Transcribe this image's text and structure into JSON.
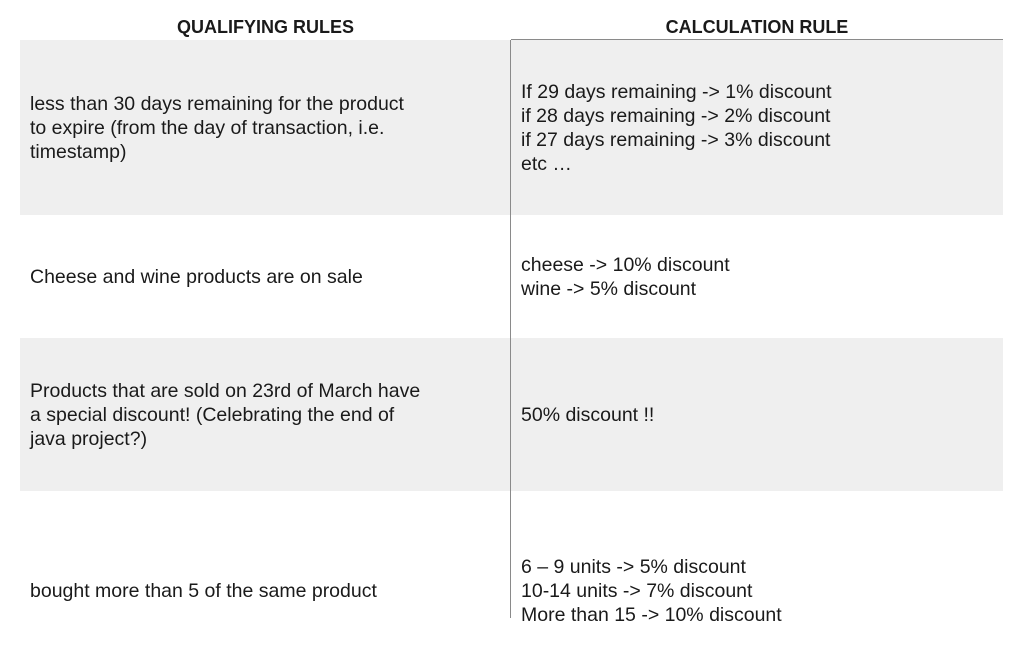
{
  "headers": {
    "qualifying": "QUALIFYING RULES",
    "calculation": "CALCULATION RULE"
  },
  "rows": [
    {
      "qualifying": "less than 30 days remaining for the product\nto expire (from the day of transaction, i.e.\ntimestamp)",
      "calculation": "If 29 days remaining -> 1% discount\nif 28 days remaining -> 2% discount\nif 27 days remaining -> 3% discount\netc …"
    },
    {
      "qualifying": "Cheese and wine products are on sale",
      "calculation": "cheese -> 10% discount\nwine -> 5% discount"
    },
    {
      "qualifying": "Products that are sold on 23rd of March have\na special discount! (Celebrating the end of\njava project?)",
      "calculation": "50% discount !!"
    },
    {
      "qualifying": "bought more than 5 of the same product",
      "calculation": "6 – 9 units -> 5% discount\n10-14 units -> 7% discount\nMore than 15 -> 10% discount"
    }
  ]
}
